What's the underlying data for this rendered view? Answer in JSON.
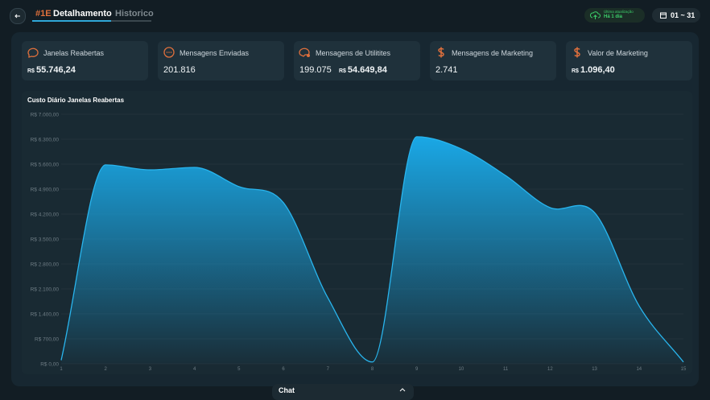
{
  "header": {
    "tag": "#1E",
    "tabs": [
      "Detalhamento",
      "Historico"
    ],
    "update_label": "Última atualização",
    "update_value": "Há 1 dia",
    "date_range": "01 ~ 31"
  },
  "cards": [
    {
      "title": "Janelas Reabertas",
      "currency": "R$",
      "value": "55.746,24"
    },
    {
      "title": "Mensagens Enviadas",
      "value": "201.816"
    },
    {
      "title": "Mensagens de Utilitites",
      "count": "199.075",
      "currency": "R$",
      "value": "54.649,84"
    },
    {
      "title": "Mensagens de Marketing",
      "value": "2.741"
    },
    {
      "title": "Valor de Marketing",
      "currency": "R$",
      "value": "1.096,40"
    }
  ],
  "chart_data": {
    "type": "area",
    "title": "Custo Diário Janelas Reabertas",
    "categories": [
      "1",
      "2",
      "3",
      "4",
      "5",
      "6",
      "7",
      "8",
      "9",
      "10",
      "11",
      "12",
      "13",
      "14",
      "15"
    ],
    "values": [
      100,
      5580,
      5440,
      5510,
      4970,
      4520,
      1850,
      50,
      6370,
      6030,
      5280,
      4380,
      4240,
      1630,
      50
    ],
    "color": "#29b5ee",
    "ylim": [
      0,
      7000
    ],
    "yticks": [
      {
        "value": 0,
        "label": "R$ 0,00"
      },
      {
        "value": 700,
        "label": "R$ 700,00"
      },
      {
        "value": 1400,
        "label": "R$ 1.400,00"
      },
      {
        "value": 2100,
        "label": "R$ 2.100,00"
      },
      {
        "value": 2800,
        "label": "R$ 2.800,00"
      },
      {
        "value": 3500,
        "label": "R$ 3.500,00"
      },
      {
        "value": 4200,
        "label": "R$ 4.200,00"
      },
      {
        "value": 4900,
        "label": "R$ 4.900,00"
      },
      {
        "value": 5600,
        "label": "R$ 5.600,00"
      },
      {
        "value": 6300,
        "label": "R$ 6.300,00"
      },
      {
        "value": 7000,
        "label": "R$ 7.000,00"
      }
    ],
    "grid": true
  },
  "chat": {
    "label": "Chat"
  }
}
